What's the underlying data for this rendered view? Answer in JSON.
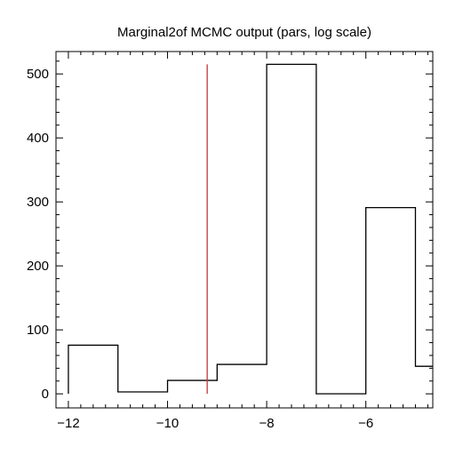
{
  "chart_data": {
    "type": "histogram",
    "title": "Marginal2of MCMC output (pars, log scale)",
    "xlabel": "",
    "ylabel": "",
    "xlim": [
      -12.25,
      -4.65
    ],
    "ylim": [
      -22,
      535
    ],
    "x_ticks": [
      {
        "value": -12,
        "label": "−12"
      },
      {
        "value": -10,
        "label": "−10"
      },
      {
        "value": -8,
        "label": "−8"
      },
      {
        "value": -6,
        "label": "−6"
      }
    ],
    "y_ticks": [
      {
        "value": 0,
        "label": "0"
      },
      {
        "value": 100,
        "label": "100"
      },
      {
        "value": 200,
        "label": "200"
      },
      {
        "value": 300,
        "label": "300"
      },
      {
        "value": 400,
        "label": "400"
      },
      {
        "value": 500,
        "label": "500"
      }
    ],
    "bins": [
      {
        "x0": -12,
        "x1": -11,
        "count": 76
      },
      {
        "x0": -11,
        "x1": -10,
        "count": 3
      },
      {
        "x0": -10,
        "x1": -9,
        "count": 21
      },
      {
        "x0": -9,
        "x1": -8,
        "count": 46
      },
      {
        "x0": -8,
        "x1": -7,
        "count": 515
      },
      {
        "x0": -7,
        "x1": -6,
        "count": 0
      },
      {
        "x0": -6,
        "x1": -5,
        "count": 291
      },
      {
        "x0": -5,
        "x1": -4.65,
        "count": 43
      }
    ],
    "reference_line": {
      "x": -9.2,
      "y0": 0,
      "y1": 515,
      "color": "#e8262b"
    },
    "colors": {
      "histogram": "#000000",
      "reference": "#e8262b",
      "frame": "#000000"
    }
  }
}
